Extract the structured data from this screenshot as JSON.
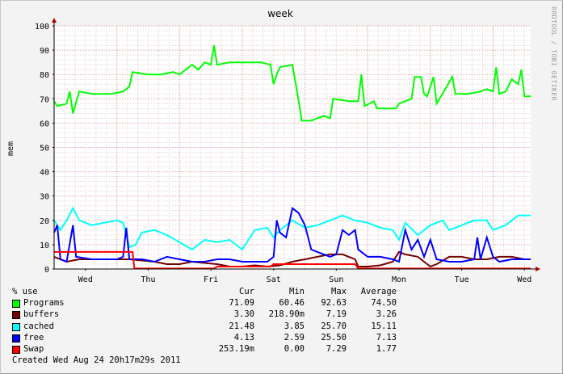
{
  "chart_data": {
    "type": "line",
    "title": "week",
    "ylabel": "mem",
    "watermark": "RRDTOOL / TOBI OETIKER",
    "ylim": [
      0,
      100
    ],
    "yticks": [
      0,
      10,
      20,
      30,
      40,
      50,
      60,
      70,
      80,
      90,
      100
    ],
    "xlim": [
      0,
      7.6
    ],
    "x_ticks": [
      {
        "x": 0.5,
        "label": "Wed"
      },
      {
        "x": 1.5,
        "label": "Thu"
      },
      {
        "x": 2.5,
        "label": "Fri"
      },
      {
        "x": 3.5,
        "label": "Sat"
      },
      {
        "x": 4.5,
        "label": "Sun"
      },
      {
        "x": 5.5,
        "label": "Mon"
      },
      {
        "x": 6.5,
        "label": "Tue"
      },
      {
        "x": 7.5,
        "label": "Wed"
      }
    ],
    "day_boundaries": [
      1,
      2,
      3,
      4,
      5,
      6,
      7
    ],
    "grid": true,
    "legend_header": {
      "unit": "% use",
      "cols": [
        "Cur",
        "Min",
        "Max",
        "Average"
      ]
    },
    "series": [
      {
        "name": "Programs",
        "color": "#00ff00",
        "stats": [
          "71.09",
          "60.46",
          "92.63",
          "74.50"
        ],
        "points": [
          [
            0,
            69
          ],
          [
            0.05,
            67
          ],
          [
            0.2,
            68
          ],
          [
            0.25,
            73
          ],
          [
            0.3,
            64
          ],
          [
            0.4,
            73
          ],
          [
            0.6,
            72
          ],
          [
            0.9,
            72
          ],
          [
            1.1,
            73
          ],
          [
            1.2,
            75
          ],
          [
            1.25,
            81
          ],
          [
            1.5,
            80
          ],
          [
            1.7,
            80
          ],
          [
            1.9,
            81
          ],
          [
            2.0,
            80
          ],
          [
            2.1,
            82
          ],
          [
            2.2,
            84
          ],
          [
            2.3,
            82
          ],
          [
            2.4,
            85
          ],
          [
            2.5,
            84
          ],
          [
            2.55,
            92
          ],
          [
            2.6,
            84
          ],
          [
            2.8,
            85
          ],
          [
            3.0,
            85
          ],
          [
            3.3,
            85
          ],
          [
            3.45,
            84
          ],
          [
            3.5,
            76
          ],
          [
            3.55,
            80
          ],
          [
            3.6,
            83
          ],
          [
            3.8,
            84
          ],
          [
            3.9,
            69
          ],
          [
            3.95,
            61
          ],
          [
            4.1,
            61
          ],
          [
            4.3,
            63
          ],
          [
            4.4,
            62
          ],
          [
            4.45,
            70
          ],
          [
            4.7,
            69
          ],
          [
            4.85,
            69
          ],
          [
            4.9,
            80
          ],
          [
            4.95,
            67
          ],
          [
            5.1,
            69
          ],
          [
            5.15,
            66
          ],
          [
            5.3,
            66
          ],
          [
            5.45,
            66
          ],
          [
            5.5,
            68
          ],
          [
            5.7,
            70
          ],
          [
            5.75,
            79
          ],
          [
            5.85,
            79
          ],
          [
            5.9,
            72
          ],
          [
            5.95,
            71
          ],
          [
            6.05,
            79
          ],
          [
            6.1,
            68
          ],
          [
            6.35,
            79
          ],
          [
            6.4,
            72
          ],
          [
            6.6,
            72
          ],
          [
            6.8,
            73
          ],
          [
            6.9,
            74
          ],
          [
            7.0,
            73
          ],
          [
            7.05,
            83
          ],
          [
            7.1,
            72
          ],
          [
            7.2,
            73
          ],
          [
            7.3,
            78
          ],
          [
            7.4,
            76
          ],
          [
            7.45,
            82
          ],
          [
            7.5,
            71
          ],
          [
            7.6,
            71
          ]
        ]
      },
      {
        "name": "buffers",
        "color": "#770000",
        "stats": [
          "3.30",
          "218.90m",
          "7.19",
          "3.26"
        ],
        "points": [
          [
            0,
            5
          ],
          [
            0.2,
            3
          ],
          [
            0.4,
            4
          ],
          [
            0.6,
            4
          ],
          [
            0.8,
            4
          ],
          [
            1.0,
            4
          ],
          [
            1.2,
            4
          ],
          [
            1.4,
            3.5
          ],
          [
            1.6,
            3
          ],
          [
            1.8,
            2
          ],
          [
            2.0,
            2
          ],
          [
            2.2,
            3
          ],
          [
            2.4,
            2.5
          ],
          [
            2.6,
            2
          ],
          [
            2.8,
            1
          ],
          [
            3.0,
            1
          ],
          [
            3.2,
            1.5
          ],
          [
            3.4,
            1
          ],
          [
            3.6,
            1.5
          ],
          [
            3.8,
            3
          ],
          [
            4.0,
            4
          ],
          [
            4.2,
            5
          ],
          [
            4.4,
            6
          ],
          [
            4.6,
            6
          ],
          [
            4.8,
            4
          ],
          [
            4.85,
            1
          ],
          [
            5.0,
            1
          ],
          [
            5.2,
            1.5
          ],
          [
            5.4,
            3
          ],
          [
            5.5,
            7
          ],
          [
            5.6,
            6
          ],
          [
            5.8,
            5
          ],
          [
            5.9,
            3
          ],
          [
            6.0,
            1
          ],
          [
            6.1,
            2
          ],
          [
            6.3,
            5
          ],
          [
            6.5,
            5
          ],
          [
            6.7,
            4
          ],
          [
            6.9,
            4
          ],
          [
            7.1,
            5
          ],
          [
            7.3,
            5
          ],
          [
            7.5,
            4
          ],
          [
            7.6,
            4
          ]
        ]
      },
      {
        "name": "cached",
        "color": "#00ffff",
        "stats": [
          "21.48",
          "3.85",
          "25.70",
          "15.11"
        ],
        "points": [
          [
            0,
            20
          ],
          [
            0.1,
            16
          ],
          [
            0.2,
            20
          ],
          [
            0.3,
            25
          ],
          [
            0.4,
            20
          ],
          [
            0.6,
            18
          ],
          [
            0.8,
            19
          ],
          [
            1.0,
            20
          ],
          [
            1.1,
            19
          ],
          [
            1.2,
            9
          ],
          [
            1.3,
            10
          ],
          [
            1.4,
            15
          ],
          [
            1.6,
            16
          ],
          [
            1.8,
            14
          ],
          [
            2.0,
            11
          ],
          [
            2.2,
            8
          ],
          [
            2.4,
            12
          ],
          [
            2.6,
            11
          ],
          [
            2.8,
            12
          ],
          [
            3.0,
            8
          ],
          [
            3.2,
            16
          ],
          [
            3.4,
            17
          ],
          [
            3.5,
            13
          ],
          [
            3.6,
            16
          ],
          [
            3.8,
            20
          ],
          [
            4.0,
            17
          ],
          [
            4.2,
            18
          ],
          [
            4.4,
            20
          ],
          [
            4.6,
            22
          ],
          [
            4.8,
            20
          ],
          [
            5.0,
            19
          ],
          [
            5.2,
            17
          ],
          [
            5.4,
            16
          ],
          [
            5.5,
            12
          ],
          [
            5.6,
            19
          ],
          [
            5.8,
            14
          ],
          [
            6.0,
            18
          ],
          [
            6.2,
            20
          ],
          [
            6.3,
            16
          ],
          [
            6.5,
            18
          ],
          [
            6.7,
            20
          ],
          [
            6.9,
            20
          ],
          [
            7.0,
            16
          ],
          [
            7.2,
            18
          ],
          [
            7.3,
            20
          ],
          [
            7.4,
            22
          ],
          [
            7.6,
            22
          ]
        ]
      },
      {
        "name": "free",
        "color": "#0000ff",
        "stats": [
          "4.13",
          "2.59",
          "25.50",
          "7.13"
        ],
        "points": [
          [
            0,
            15
          ],
          [
            0.05,
            18
          ],
          [
            0.1,
            4
          ],
          [
            0.2,
            3
          ],
          [
            0.3,
            18
          ],
          [
            0.35,
            5
          ],
          [
            0.6,
            4
          ],
          [
            0.8,
            4
          ],
          [
            1.0,
            4
          ],
          [
            1.1,
            5
          ],
          [
            1.15,
            17
          ],
          [
            1.2,
            4
          ],
          [
            1.4,
            4
          ],
          [
            1.6,
            3
          ],
          [
            1.8,
            5
          ],
          [
            2.0,
            4
          ],
          [
            2.2,
            3
          ],
          [
            2.4,
            3
          ],
          [
            2.6,
            4
          ],
          [
            2.8,
            4
          ],
          [
            3.0,
            3
          ],
          [
            3.2,
            3
          ],
          [
            3.4,
            3
          ],
          [
            3.5,
            5
          ],
          [
            3.55,
            20
          ],
          [
            3.6,
            15
          ],
          [
            3.7,
            13
          ],
          [
            3.8,
            25
          ],
          [
            3.9,
            23
          ],
          [
            4.0,
            18
          ],
          [
            4.1,
            8
          ],
          [
            4.2,
            7
          ],
          [
            4.4,
            5
          ],
          [
            4.5,
            6
          ],
          [
            4.6,
            16
          ],
          [
            4.7,
            14
          ],
          [
            4.8,
            16
          ],
          [
            4.85,
            8
          ],
          [
            5.0,
            5
          ],
          [
            5.2,
            5
          ],
          [
            5.4,
            4
          ],
          [
            5.5,
            3
          ],
          [
            5.6,
            16
          ],
          [
            5.7,
            8
          ],
          [
            5.8,
            12
          ],
          [
            5.9,
            5
          ],
          [
            6.0,
            12
          ],
          [
            6.1,
            4
          ],
          [
            6.3,
            3
          ],
          [
            6.5,
            3
          ],
          [
            6.7,
            4
          ],
          [
            6.75,
            13
          ],
          [
            6.8,
            4
          ],
          [
            6.9,
            13
          ],
          [
            7.0,
            5
          ],
          [
            7.1,
            3
          ],
          [
            7.3,
            4
          ],
          [
            7.5,
            4
          ],
          [
            7.6,
            4
          ]
        ]
      },
      {
        "name": "Swap",
        "color": "#ff0000",
        "stats": [
          "253.19m",
          "0.00",
          "7.29",
          "1.77"
        ],
        "points": [
          [
            0,
            7
          ],
          [
            1.25,
            7
          ],
          [
            1.28,
            0.2
          ],
          [
            2.55,
            0.2
          ],
          [
            2.6,
            1
          ],
          [
            3.45,
            1
          ],
          [
            3.5,
            2
          ],
          [
            4.8,
            2
          ],
          [
            4.85,
            0.2
          ],
          [
            7.6,
            0.2
          ]
        ]
      }
    ]
  },
  "created": "Created Wed Aug 24 20h17m29s 2011"
}
